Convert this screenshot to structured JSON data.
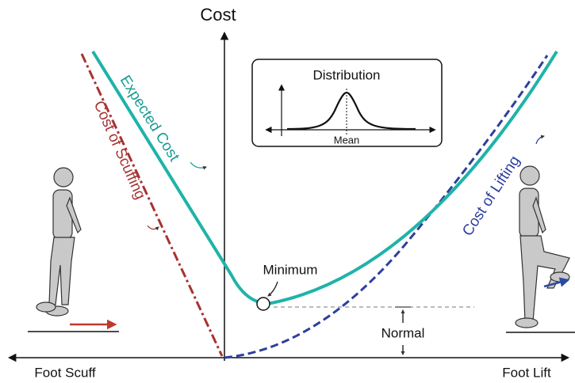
{
  "axis": {
    "y_label": "Cost",
    "x_left": "Foot Scuff",
    "x_right": "Foot Lift"
  },
  "inset": {
    "title": "Distribution",
    "x_label": "Mean"
  },
  "curves": {
    "expected": "Expected Cost",
    "scuffing": "Cost of Scuffing",
    "lifting": "Cost of Lifting"
  },
  "annotations": {
    "minimum": "Minimum",
    "normal": "Normal"
  }
}
